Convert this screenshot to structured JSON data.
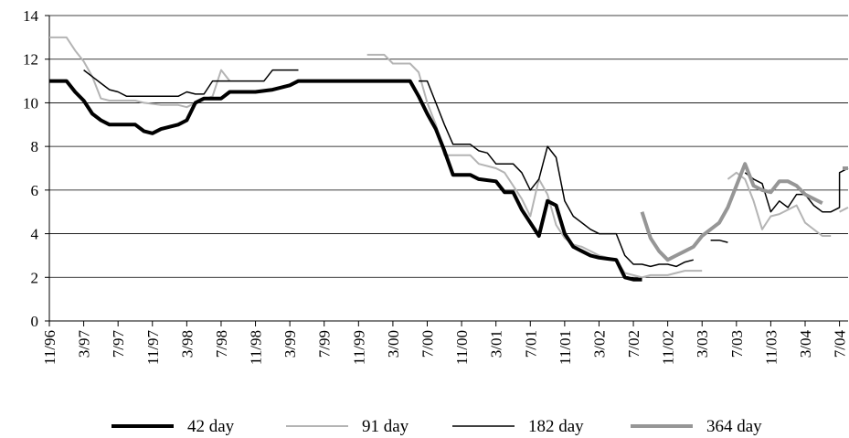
{
  "chart_data": {
    "type": "line",
    "title": "",
    "xlabel": "",
    "ylabel": "",
    "ylim": [
      0,
      14
    ],
    "yticks": [
      0,
      2,
      4,
      6,
      8,
      10,
      12,
      14
    ],
    "grid": "horizontal",
    "legend": "bottom",
    "x_start": "11/96",
    "x_end": "8/04",
    "x_tick_labels": [
      "11/96",
      "3/97",
      "7/97",
      "11/97",
      "3/98",
      "7/98",
      "11/98",
      "3/99",
      "7/99",
      "11/99",
      "3/00",
      "7/00",
      "11/00",
      "3/01",
      "7/01",
      "11/01",
      "3/02",
      "7/02",
      "11/02",
      "3/03",
      "7/03",
      "11/03",
      "3/04",
      "7/04"
    ],
    "series": [
      {
        "name": "42 day",
        "color": "#000000",
        "width": 4,
        "segments": [
          [
            [
              "11/96",
              11
            ],
            [
              "1/97",
              11
            ],
            [
              "2/97",
              10.5
            ],
            [
              "3/97",
              10.1
            ],
            [
              "4/97",
              9.5
            ],
            [
              "5/97",
              9.2
            ],
            [
              "6/97",
              9
            ],
            [
              "9/97",
              9
            ],
            [
              "10/97",
              8.7
            ],
            [
              "11/97",
              8.6
            ],
            [
              "12/97",
              8.8
            ],
            [
              "1/98",
              8.9
            ],
            [
              "2/98",
              9.0
            ],
            [
              "3/98",
              9.2
            ],
            [
              "4/98",
              10.0
            ],
            [
              "5/98",
              10.2
            ],
            [
              "7/98",
              10.2
            ],
            [
              "8/98",
              10.5
            ],
            [
              "11/98",
              10.5
            ],
            [
              "1/99",
              10.6
            ],
            [
              "3/99",
              10.8
            ],
            [
              "4/99",
              11
            ],
            [
              "2/00",
              11
            ],
            [
              "5/00",
              11
            ],
            [
              "6/00",
              10.3
            ],
            [
              "7/00",
              9.5
            ],
            [
              "8/00",
              8.8
            ],
            [
              "9/00",
              7.8
            ],
            [
              "10/00",
              6.7
            ],
            [
              "12/00",
              6.7
            ],
            [
              "1/01",
              6.5
            ],
            [
              "3/01",
              6.4
            ],
            [
              "4/01",
              5.9
            ],
            [
              "5/01",
              5.9
            ],
            [
              "6/01",
              5.1
            ],
            [
              "7/01",
              4.5
            ],
            [
              "8/01",
              3.9
            ],
            [
              "9/01",
              5.5
            ],
            [
              "10/01",
              5.3
            ],
            [
              "11/01",
              4.0
            ],
            [
              "12/01",
              3.4
            ],
            [
              "1/02",
              3.2
            ],
            [
              "2/02",
              3.0
            ],
            [
              "3/02",
              2.9
            ],
            [
              "4/02",
              2.85
            ],
            [
              "5/02",
              2.8
            ],
            [
              "6/02",
              2.0
            ],
            [
              "7/02",
              1.9
            ],
            [
              "8/02",
              1.9
            ]
          ]
        ]
      },
      {
        "name": "91 day",
        "color": "#b4b4b4",
        "width": 2,
        "segments": [
          [
            [
              "11/96",
              13
            ],
            [
              "1/97",
              13
            ],
            [
              "2/97",
              12.4
            ],
            [
              "3/97",
              11.9
            ],
            [
              "4/97",
              11.2
            ],
            [
              "5/97",
              10.2
            ],
            [
              "6/97",
              10.1
            ],
            [
              "9/97",
              10.1
            ],
            [
              "10/97",
              10.0
            ],
            [
              "12/97",
              9.9
            ],
            [
              "2/98",
              9.9
            ],
            [
              "3/98",
              9.8
            ],
            [
              "4/98",
              10.0
            ],
            [
              "6/98",
              10.3
            ],
            [
              "7/98",
              11.5
            ],
            [
              "8/98",
              11.0
            ]
          ],
          [
            [
              "12/99",
              12.2
            ],
            [
              "2/00",
              12.2
            ],
            [
              "3/00",
              11.8
            ],
            [
              "5/00",
              11.8
            ],
            [
              "6/00",
              11.4
            ],
            [
              "7/00",
              10.0
            ],
            [
              "8/00",
              9.0
            ],
            [
              "9/00",
              7.6
            ],
            [
              "12/00",
              7.6
            ],
            [
              "1/01",
              7.2
            ],
            [
              "3/01",
              7.0
            ],
            [
              "4/01",
              6.8
            ],
            [
              "5/01",
              6.2
            ],
            [
              "6/01",
              5.6
            ],
            [
              "7/01",
              4.8
            ],
            [
              "8/01",
              6.5
            ],
            [
              "9/01",
              5.8
            ],
            [
              "10/01",
              4.4
            ],
            [
              "11/01",
              3.8
            ],
            [
              "12/01",
              3.5
            ],
            [
              "1/02",
              3.4
            ],
            [
              "3/02",
              3.0
            ],
            [
              "5/02",
              2.8
            ],
            [
              "6/02",
              2.2
            ],
            [
              "8/02",
              2.0
            ],
            [
              "9/02",
              2.1
            ],
            [
              "11/02",
              2.1
            ],
            [
              "1/03",
              2.3
            ],
            [
              "3/03",
              2.3
            ]
          ],
          [
            [
              "6/03",
              6.5
            ],
            [
              "7/03",
              6.8
            ],
            [
              "8/03",
              6.5
            ],
            [
              "9/03",
              5.5
            ],
            [
              "10/03",
              4.2
            ],
            [
              "11/03",
              4.8
            ],
            [
              "12/03",
              4.9
            ],
            [
              "2/04",
              5.3
            ],
            [
              "3/04",
              4.5
            ],
            [
              "5/04",
              3.9
            ],
            [
              "6/04",
              3.9
            ]
          ],
          [
            [
              "7/04",
              5.0
            ],
            [
              "8/04",
              5.2
            ]
          ]
        ]
      },
      {
        "name": "182 day",
        "color": "#000000",
        "width": 1.5,
        "segments": [
          [
            [
              "3/97",
              11.5
            ],
            [
              "4/97",
              11.2
            ],
            [
              "5/97",
              10.9
            ],
            [
              "6/97",
              10.6
            ],
            [
              "7/97",
              10.5
            ],
            [
              "8/97",
              10.3
            ],
            [
              "2/98",
              10.3
            ],
            [
              "3/98",
              10.5
            ],
            [
              "4/98",
              10.4
            ],
            [
              "5/98",
              10.4
            ],
            [
              "6/98",
              11.0
            ],
            [
              "12/98",
              11.0
            ],
            [
              "1/99",
              11.5
            ],
            [
              "4/99",
              11.5
            ]
          ],
          [
            [
              "6/00",
              11.0
            ],
            [
              "7/00",
              11.0
            ],
            [
              "8/00",
              10.0
            ],
            [
              "9/00",
              9.0
            ],
            [
              "10/00",
              8.1
            ],
            [
              "12/00",
              8.1
            ],
            [
              "1/01",
              7.8
            ],
            [
              "2/01",
              7.7
            ],
            [
              "3/01",
              7.2
            ],
            [
              "5/01",
              7.2
            ],
            [
              "6/01",
              6.8
            ],
            [
              "7/01",
              6.0
            ],
            [
              "8/01",
              6.5
            ],
            [
              "9/01",
              8.0
            ],
            [
              "10/01",
              7.5
            ],
            [
              "11/01",
              5.5
            ],
            [
              "12/01",
              4.8
            ],
            [
              "1/02",
              4.5
            ],
            [
              "2/02",
              4.2
            ],
            [
              "3/02",
              4.0
            ],
            [
              "5/02",
              4.0
            ],
            [
              "6/02",
              3.0
            ],
            [
              "7/02",
              2.6
            ],
            [
              "8/02",
              2.6
            ],
            [
              "9/02",
              2.5
            ],
            [
              "10/02",
              2.6
            ],
            [
              "11/02",
              2.6
            ],
            [
              "12/02",
              2.5
            ],
            [
              "1/03",
              2.7
            ],
            [
              "2/03",
              2.8
            ]
          ],
          [
            [
              "4/03",
              3.7
            ],
            [
              "5/03",
              3.7
            ],
            [
              "6/03",
              3.6
            ]
          ],
          [
            [
              "8/03",
              6.8
            ],
            [
              "9/03",
              6.5
            ],
            [
              "10/03",
              6.3
            ],
            [
              "11/03",
              5.0
            ],
            [
              "12/03",
              5.5
            ],
            [
              "1/04",
              5.2
            ],
            [
              "2/04",
              5.8
            ],
            [
              "3/04",
              5.8
            ],
            [
              "4/04",
              5.3
            ],
            [
              "5/04",
              5.0
            ],
            [
              "6/04",
              5.0
            ],
            [
              "7/04",
              5.2
            ],
            [
              "7/04",
              6.8
            ],
            [
              "8/04",
              7.0
            ]
          ]
        ]
      },
      {
        "name": "364 day",
        "color": "#969696",
        "width": 4,
        "segments": [
          [
            [
              "8/02",
              5.0
            ],
            [
              "9/02",
              3.8
            ],
            [
              "10/02",
              3.2
            ],
            [
              "11/02",
              2.8
            ],
            [
              "12/02",
              3.0
            ],
            [
              "1/03",
              3.2
            ],
            [
              "2/03",
              3.4
            ],
            [
              "3/03",
              3.9
            ],
            [
              "4/03",
              4.2
            ],
            [
              "5/03",
              4.5
            ],
            [
              "6/03",
              5.2
            ],
            [
              "7/03",
              6.2
            ],
            [
              "8/03",
              7.2
            ],
            [
              "9/03",
              6.2
            ],
            [
              "10/03",
              6.0
            ],
            [
              "11/03",
              5.9
            ],
            [
              "12/03",
              6.4
            ],
            [
              "1/04",
              6.4
            ],
            [
              "2/04",
              6.2
            ],
            [
              "3/04",
              5.8
            ],
            [
              "4/04",
              5.6
            ],
            [
              "5/04",
              5.4
            ]
          ],
          [
            [
              "8/04",
              7.0
            ]
          ]
        ]
      }
    ]
  }
}
